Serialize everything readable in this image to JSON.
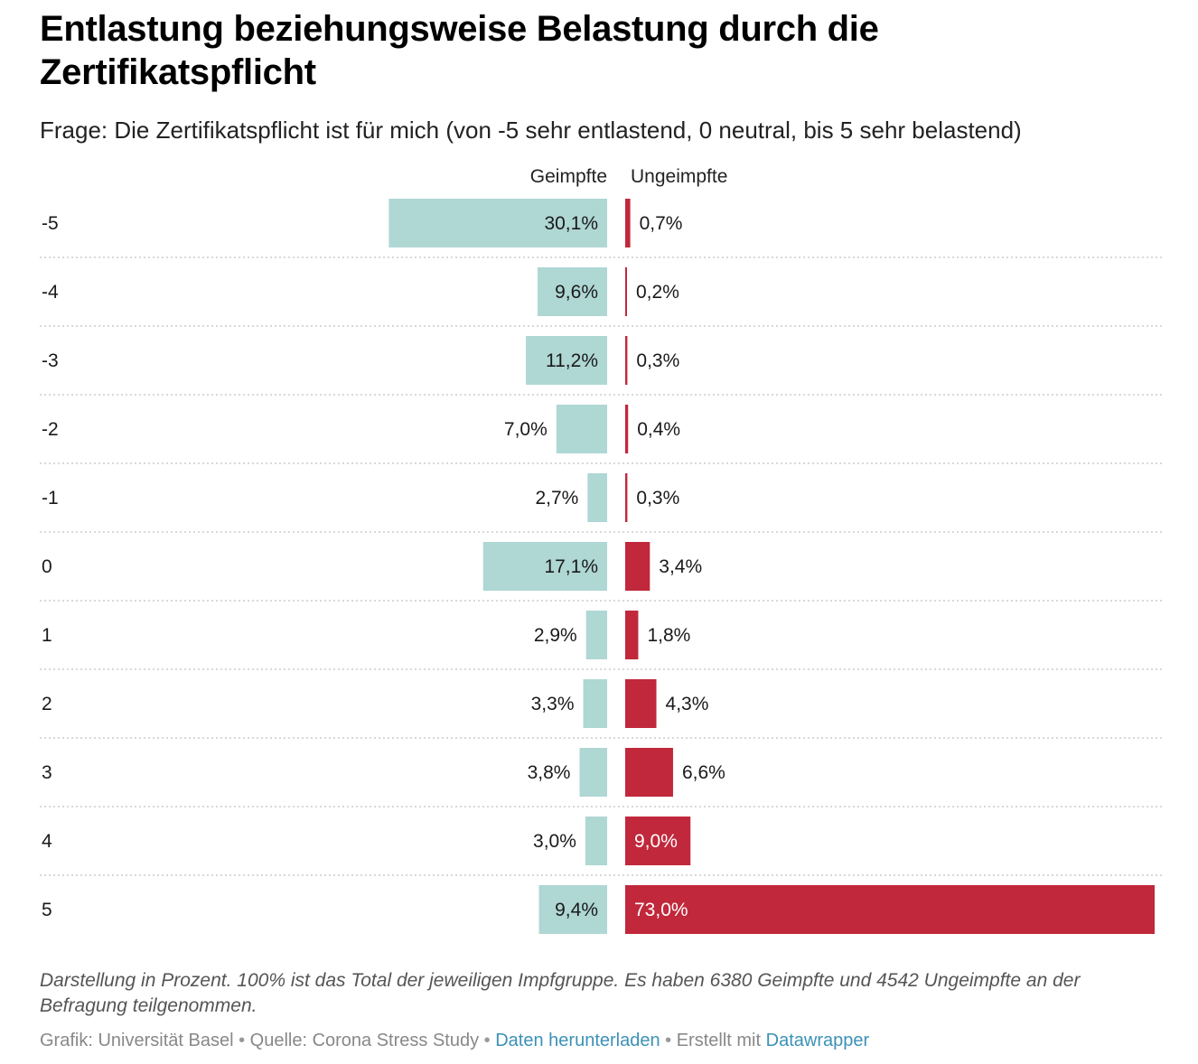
{
  "title": "Entlastung beziehungsweise Belastung durch die Zertifikatspflicht",
  "subtitle": "Frage: Die Zertifikatspflicht ist für mich (von -5 sehr entlastend, 0 neutral, bis 5 sehr belastend)",
  "colors": {
    "geimpfte": "#afd7d4",
    "ungeimpfte": "#c1283b",
    "label_dark": "#1a1a1a",
    "label_on_bar_light": "#ffffff",
    "separator": "#cccccc",
    "link": "#3c91b7"
  },
  "chart_data": {
    "type": "bar",
    "orientation": "horizontal-split",
    "categories": [
      "-5",
      "-4",
      "-3",
      "-2",
      "-1",
      "0",
      "1",
      "2",
      "3",
      "4",
      "5"
    ],
    "series": [
      {
        "name": "Geimpfte",
        "values": [
          30.1,
          9.6,
          11.2,
          7.0,
          2.7,
          17.1,
          2.9,
          3.3,
          3.8,
          3.0,
          9.4
        ],
        "labels": [
          "30,1%",
          "9,6%",
          "11,2%",
          "7,0%",
          "2,7%",
          "17,1%",
          "2,9%",
          "3,3%",
          "3,8%",
          "3,0%",
          "9,4%"
        ],
        "color": "#afd7d4"
      },
      {
        "name": "Ungeimpfte",
        "values": [
          0.7,
          0.2,
          0.3,
          0.4,
          0.3,
          3.4,
          1.8,
          4.3,
          6.6,
          9.0,
          73.0
        ],
        "labels": [
          "0,7%",
          "0,2%",
          "0,3%",
          "0,4%",
          "0,3%",
          "3,4%",
          "1,8%",
          "4,3%",
          "6,6%",
          "9,0%",
          "73,0%"
        ],
        "color": "#c1283b"
      }
    ],
    "xlim": [
      0,
      73
    ],
    "grid": false,
    "row_separators": "dotted"
  },
  "notes": "Darstellung in Prozent. 100% ist das Total der jeweiligen Impfgruppe. Es haben 6380 Geimpfte und 4542 Ungeimpfte an der Befragung teilgenommen.",
  "footer": {
    "grafik": "Grafik: Universität Basel",
    "sep": " • ",
    "quelle": "Quelle: Corona Stress Study",
    "download": "Daten herunterladen",
    "erstellt": "Erstellt mit ",
    "datawrapper": "Datawrapper"
  }
}
